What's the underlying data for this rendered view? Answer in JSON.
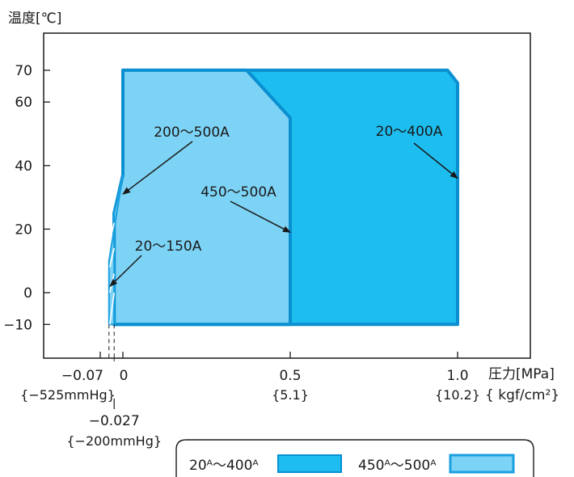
{
  "chart_data": {
    "type": "area",
    "ylabel": "温度[℃]",
    "xlabel": "圧力[MPa]",
    "xlabel2": "{ kgf/cm²}",
    "ylim": [
      -20,
      80
    ],
    "grid": false,
    "y_ticks": [
      {
        "value": 70,
        "label": "70"
      },
      {
        "value": 60,
        "label": "60"
      },
      {
        "value": 40,
        "label": "40"
      },
      {
        "value": 20,
        "label": "20"
      },
      {
        "value": 0,
        "label": "0"
      },
      {
        "value": -10,
        "label": "−10"
      }
    ],
    "x_ticks": [
      {
        "value": -0.07,
        "label": "−0.07",
        "sublabel": "{−525mmHg}"
      },
      {
        "value": 0,
        "label": "0",
        "sublabel": ""
      },
      {
        "value": 0.5,
        "label": "0.5",
        "sublabel": "{5.1}"
      },
      {
        "value": 1.0,
        "label": "1.0",
        "sublabel": "{10.2}"
      }
    ],
    "extra_x_tick": {
      "value": -0.027,
      "label": "−0.027",
      "sublabel": "{−200mmHg}"
    },
    "series": [
      {
        "name": "20ᴬ〜400ᴬ",
        "color": "#1dbdf0",
        "points": [
          [
            0,
            -10
          ],
          [
            1.0,
            -10
          ],
          [
            1.0,
            66
          ],
          [
            0.97,
            70
          ],
          [
            0,
            70
          ],
          [
            0,
            37
          ],
          [
            -0.027,
            25
          ],
          [
            -0.027,
            -10
          ]
        ]
      },
      {
        "name": "450ᴬ〜500ᴬ",
        "color": "#7dd3f5",
        "points": [
          [
            0,
            -10
          ],
          [
            0.5,
            -10
          ],
          [
            0.5,
            55
          ],
          [
            0.37,
            70
          ],
          [
            0,
            70
          ],
          [
            0,
            37
          ],
          [
            -0.027,
            25
          ],
          [
            -0.027,
            -10
          ]
        ]
      },
      {
        "name": "20〜150A",
        "color": "#7dd3f5",
        "pattern": "hatched",
        "points": [
          [
            -0.043,
            -10
          ],
          [
            -0.027,
            -10
          ],
          [
            -0.027,
            25
          ],
          [
            0,
            37
          ],
          [
            -0.043,
            10
          ]
        ]
      }
    ],
    "annotations": [
      {
        "text": "200〜500A",
        "points_to": [
          0,
          31
        ]
      },
      {
        "text": "20〜400A",
        "points_to": [
          1.0,
          36
        ]
      },
      {
        "text": "450〜500A",
        "points_to": [
          0.5,
          19
        ]
      },
      {
        "text": "20〜150A",
        "points_to": [
          -0.04,
          2
        ]
      }
    ],
    "legend": {
      "position": "bottom-right",
      "items": [
        {
          "label": "20ᴬ〜400ᴬ",
          "color": "#1dbdf0",
          "fill": "solid"
        },
        {
          "label": "450ᴬ〜500ᴬ",
          "color": "#7dd3f5",
          "fill": "light"
        }
      ]
    }
  }
}
